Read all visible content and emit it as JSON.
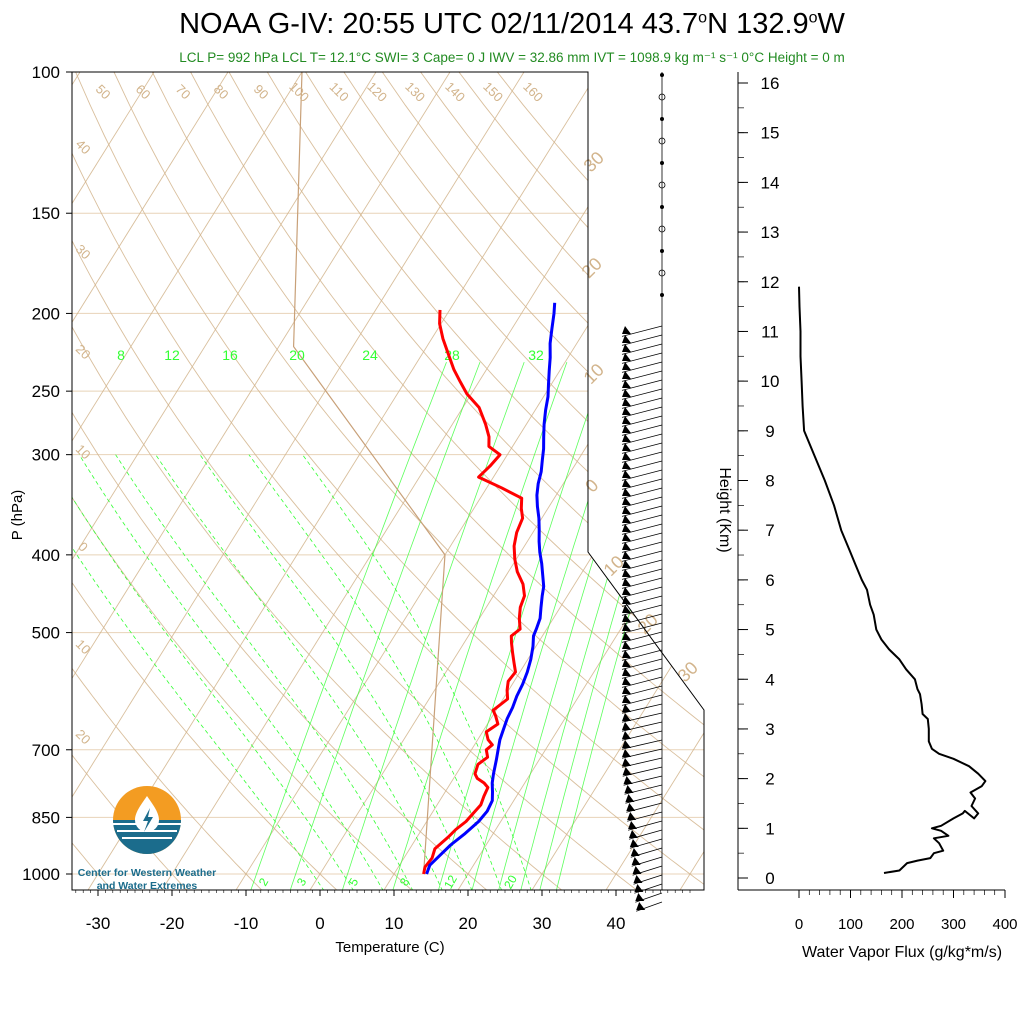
{
  "title_parts": {
    "prefix": "NOAA G-IV: 20:55 UTC 02/11/2014  43.7",
    "deg1": "o",
    "mid": "N 132.9",
    "deg2": "o",
    "suffix": "W"
  },
  "subtitle": "LCL P= 992 hPa  LCL T= 12.1°C  SWI= 3  Cape= 0 J  IWV = 32.86 mm  IVT = 1098.9 kg m⁻¹ s⁻¹  0°C Height = 0 m",
  "logo": {
    "line1": "Center for Western Weather",
    "line2": "and Water Extremes",
    "icon": "water-drop-sun-icon"
  },
  "colors": {
    "temperature": "#ff0000",
    "dewpoint_label_note": "",
    "dewpoint": "#0000ff",
    "isotherm": "#d2b48c",
    "mixing_ratio": "#33ff33",
    "parcel": "#c8a078",
    "flux": "#000000"
  },
  "chart_data": [
    {
      "type": "line",
      "subtype": "skew-t",
      "title": "",
      "xlabel": "Temperature (C)",
      "ylabel": "P (hPa)",
      "x_ticks": [
        -30,
        -20,
        -10,
        0,
        10,
        20,
        30,
        40
      ],
      "y_ticks": [
        100,
        150,
        200,
        250,
        300,
        400,
        500,
        700,
        850,
        1000
      ],
      "yscale": "log",
      "ylim": [
        1000,
        100
      ],
      "isotherm_labels": [
        "50",
        "60",
        "70",
        "80",
        "90",
        "100",
        "110",
        "120",
        "130",
        "140",
        "150",
        "160"
      ],
      "isotherm_side_labels": [
        "40",
        "30",
        "20",
        "10",
        "0",
        "10",
        "20"
      ],
      "mixing_ratio_labels_top": [
        "8",
        "12",
        "16",
        "20",
        "24",
        "28",
        "32"
      ],
      "mixing_ratio_labels_bottom": [
        "2",
        "3",
        "5",
        "8",
        "12",
        "20"
      ],
      "adiabat_labels": [
        "30",
        "20",
        "10",
        "0",
        "10",
        "20",
        "30"
      ],
      "series": [
        {
          "name": "",
          "color": "red",
          "points": [
            [
              14.0,
              1000
            ],
            [
              13.6,
              980
            ],
            [
              13.8,
              955
            ],
            [
              13.4,
              930
            ],
            [
              14.2,
              900
            ],
            [
              14.6,
              880
            ],
            [
              15.3,
              860
            ],
            [
              15.6,
              840
            ],
            [
              15.9,
              820
            ],
            [
              15.6,
              800
            ],
            [
              15.4,
              780
            ],
            [
              14.5,
              770
            ],
            [
              13.2,
              760
            ],
            [
              12.5,
              750
            ],
            [
              12.1,
              730
            ],
            [
              12.8,
              715
            ],
            [
              12.0,
              700
            ],
            [
              12.4,
              690
            ],
            [
              11.4,
              680
            ],
            [
              10.5,
              665
            ],
            [
              11.4,
              650
            ],
            [
              10.4,
              635
            ],
            [
              9.6,
              625
            ],
            [
              10.6,
              605
            ],
            [
              9.8,
              590
            ],
            [
              9.2,
              575
            ],
            [
              9.4,
              560
            ],
            [
              8.4,
              545
            ],
            [
              7.4,
              530
            ],
            [
              6.4,
              515
            ],
            [
              5.8,
              505
            ],
            [
              6.4,
              495
            ],
            [
              5.4,
              480
            ],
            [
              4.6,
              465
            ],
            [
              4.2,
              450
            ],
            [
              3.0,
              435
            ],
            [
              1.2,
              420
            ],
            [
              -0.2,
              405
            ],
            [
              -1.4,
              390
            ],
            [
              -2.2,
              375
            ],
            [
              -2.6,
              360
            ],
            [
              -3.6,
              350
            ],
            [
              -4.4,
              340
            ],
            [
              -8.0,
              330
            ],
            [
              -12.0,
              320
            ],
            [
              -11.4,
              310
            ],
            [
              -11.0,
              300
            ],
            [
              -13.2,
              293
            ],
            [
              -14.0,
              285
            ],
            [
              -15.5,
              275
            ],
            [
              -17.8,
              262
            ],
            [
              -20.6,
              252
            ],
            [
              -22.6,
              243
            ],
            [
              -24.4,
              235
            ],
            [
              -26.4,
              225
            ],
            [
              -28.5,
              215
            ],
            [
              -30.2,
              206
            ],
            [
              -31.3,
              198
            ]
          ]
        },
        {
          "name": "",
          "color": "blue",
          "points": [
            [
              14.4,
              1000
            ],
            [
              14.1,
              975
            ],
            [
              14.6,
              950
            ],
            [
              15.2,
              920
            ],
            [
              16.2,
              890
            ],
            [
              17.0,
              860
            ],
            [
              17.3,
              835
            ],
            [
              17.1,
              810
            ],
            [
              16.4,
              790
            ],
            [
              15.6,
              770
            ],
            [
              15.0,
              750
            ],
            [
              14.2,
              720
            ],
            [
              13.6,
              700
            ],
            [
              13.0,
              680
            ],
            [
              12.6,
              660
            ],
            [
              12.2,
              640
            ],
            [
              12.0,
              620
            ],
            [
              11.6,
              600
            ],
            [
              11.4,
              580
            ],
            [
              11.0,
              560
            ],
            [
              10.4,
              540
            ],
            [
              9.6,
              520
            ],
            [
              8.8,
              505
            ],
            [
              8.6,
              495
            ],
            [
              8.2,
              480
            ],
            [
              7.4,
              465
            ],
            [
              6.6,
              450
            ],
            [
              6.0,
              438
            ],
            [
              5.0,
              425
            ],
            [
              3.8,
              410
            ],
            [
              2.6,
              397
            ],
            [
              1.6,
              385
            ],
            [
              0.6,
              372
            ],
            [
              -0.4,
              360
            ],
            [
              -1.6,
              348
            ],
            [
              -2.6,
              337
            ],
            [
              -3.4,
              326
            ],
            [
              -4.0,
              315
            ],
            [
              -4.8,
              305
            ],
            [
              -5.6,
              295
            ],
            [
              -6.6,
              285
            ],
            [
              -7.6,
              275
            ],
            [
              -8.6,
              264
            ],
            [
              -9.4,
              254
            ],
            [
              -10.4,
              245
            ],
            [
              -11.4,
              236
            ],
            [
              -12.4,
              227
            ],
            [
              -13.6,
              218
            ],
            [
              -14.6,
              209
            ],
            [
              -15.6,
              200
            ],
            [
              -16.4,
              194
            ]
          ]
        }
      ]
    },
    {
      "type": "line",
      "title": "",
      "xlabel": "Water Vapor Flux (g/kg*m/s)",
      "ylabel": "Height (Km)",
      "x_ticks": [
        0,
        100,
        200,
        300,
        400
      ],
      "y_ticks": [
        0,
        1,
        2,
        3,
        4,
        5,
        6,
        7,
        8,
        9,
        10,
        11,
        12,
        13,
        14,
        15,
        16
      ],
      "xlim": [
        0,
        400
      ],
      "ylim": [
        0,
        16
      ],
      "series": [
        {
          "name": "",
          "points": [
            [
              165,
              0.1
            ],
            [
              195,
              0.15
            ],
            [
              210,
              0.3
            ],
            [
              230,
              0.35
            ],
            [
              255,
              0.4
            ],
            [
              262,
              0.5
            ],
            [
              280,
              0.55
            ],
            [
              272,
              0.7
            ],
            [
              262,
              0.8
            ],
            [
              290,
              0.85
            ],
            [
              276,
              0.95
            ],
            [
              258,
              1.0
            ],
            [
              276,
              1.05
            ],
            [
              300,
              1.2
            ],
            [
              318,
              1.3
            ],
            [
              322,
              1.35
            ],
            [
              340,
              1.2
            ],
            [
              348,
              1.3
            ],
            [
              335,
              1.45
            ],
            [
              342,
              1.6
            ],
            [
              333,
              1.72
            ],
            [
              355,
              1.85
            ],
            [
              362,
              1.95
            ],
            [
              348,
              2.1
            ],
            [
              330,
              2.25
            ],
            [
              300,
              2.4
            ],
            [
              272,
              2.5
            ],
            [
              258,
              2.6
            ],
            [
              252,
              2.75
            ],
            [
              252,
              3.0
            ],
            [
              250,
              3.2
            ],
            [
              240,
              3.3
            ],
            [
              238,
              3.5
            ],
            [
              235,
              3.7
            ],
            [
              230,
              3.8
            ],
            [
              225,
              4.0
            ],
            [
              208,
              4.2
            ],
            [
              195,
              4.4
            ],
            [
              175,
              4.6
            ],
            [
              160,
              4.8
            ],
            [
              150,
              5.0
            ],
            [
              145,
              5.3
            ],
            [
              138,
              5.5
            ],
            [
              132,
              5.8
            ],
            [
              122,
              6.0
            ],
            [
              110,
              6.3
            ],
            [
              98,
              6.6
            ],
            [
              82,
              7.0
            ],
            [
              68,
              7.5
            ],
            [
              50,
              8.0
            ],
            [
              30,
              8.5
            ],
            [
              10,
              9.0
            ],
            [
              7,
              9.5
            ],
            [
              5,
              10.0
            ],
            [
              3,
              10.5
            ],
            [
              3,
              11.0
            ],
            [
              1,
              11.5
            ],
            [
              0,
              11.9
            ]
          ]
        }
      ]
    }
  ]
}
